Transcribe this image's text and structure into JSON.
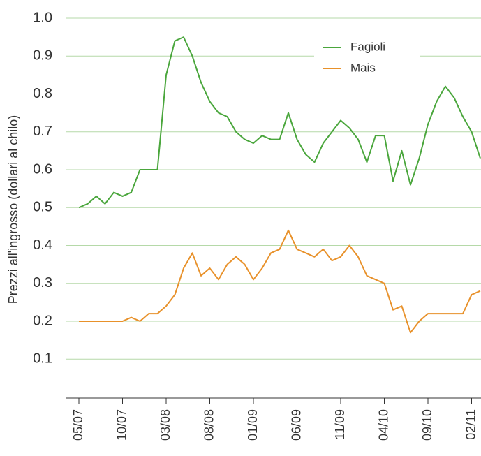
{
  "chart_data": {
    "type": "line",
    "y_label": "Prezzi all'ingrosso (dollari al chilo)",
    "categories": [
      "05/07",
      null,
      null,
      null,
      null,
      "10/07",
      null,
      null,
      null,
      null,
      "03/08",
      null,
      null,
      null,
      null,
      "08/08",
      null,
      null,
      null,
      null,
      "01/09",
      null,
      null,
      null,
      null,
      "06/09",
      null,
      null,
      null,
      null,
      "11/09",
      null,
      null,
      null,
      null,
      "04/10",
      null,
      null,
      null,
      null,
      "09/10",
      null,
      null,
      null,
      null,
      "02/11",
      null
    ],
    "series": [
      {
        "name": "Fagioli",
        "color": "#4aa63c",
        "values": [
          0.5,
          0.51,
          0.53,
          0.51,
          0.54,
          0.53,
          0.54,
          0.6,
          0.6,
          0.6,
          0.85,
          0.94,
          0.95,
          0.9,
          0.83,
          0.78,
          0.75,
          0.74,
          0.7,
          0.68,
          0.67,
          0.69,
          0.68,
          0.68,
          0.75,
          0.68,
          0.64,
          0.62,
          0.67,
          0.7,
          0.73,
          0.71,
          0.68,
          0.62,
          0.69,
          0.69,
          0.57,
          0.65,
          0.56,
          0.63,
          0.72,
          0.78,
          0.82,
          0.79,
          0.74,
          0.7,
          0.63
        ]
      },
      {
        "name": "Mais",
        "color": "#e8912a",
        "values": [
          0.2,
          0.2,
          0.2,
          0.2,
          0.2,
          0.2,
          0.21,
          0.2,
          0.22,
          0.22,
          0.24,
          0.27,
          0.34,
          0.38,
          0.32,
          0.34,
          0.31,
          0.35,
          0.37,
          0.35,
          0.31,
          0.34,
          0.38,
          0.39,
          0.44,
          0.39,
          0.38,
          0.37,
          0.39,
          0.36,
          0.37,
          0.4,
          0.37,
          0.32,
          0.31,
          0.3,
          0.23,
          0.24,
          0.17,
          0.2,
          0.22,
          0.22,
          0.22,
          0.22,
          0.22,
          0.27,
          0.28
        ]
      }
    ],
    "ylim": [
      0,
      1
    ],
    "yticks": [
      0.1,
      0.2,
      0.3,
      0.4,
      0.5,
      0.6,
      0.7,
      0.8,
      0.9,
      {
        "value": 1,
        "label": "1.0"
      }
    ],
    "grid": true,
    "legend": "upper right"
  }
}
